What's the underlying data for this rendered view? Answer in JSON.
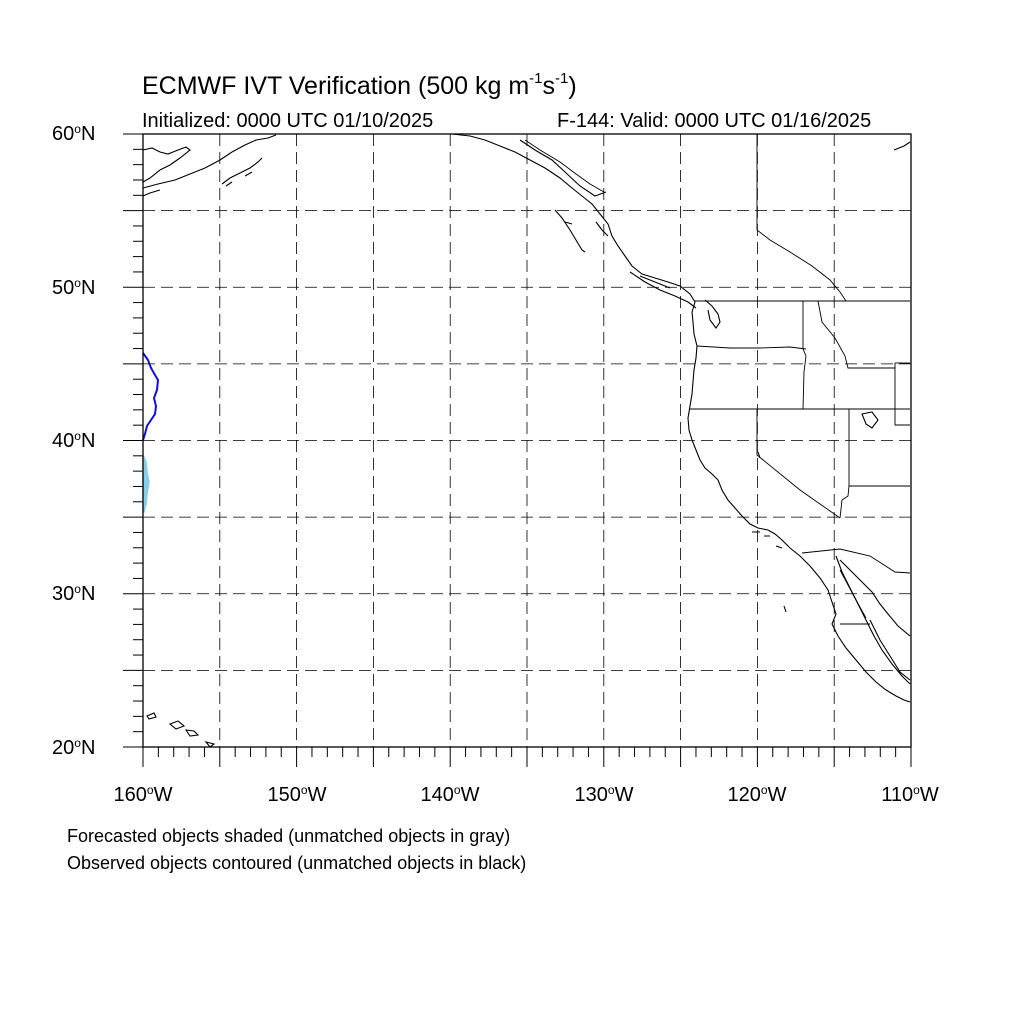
{
  "title": {
    "main": "ECMWF IVT Verification (500 kg m",
    "sup1": "-1",
    "mid": "s",
    "sup2": "-1",
    "end": ")"
  },
  "initialized": "Initialized: 0000 UTC 01/10/2025",
  "valid": "F-144: Valid: 0000 UTC 01/16/2025",
  "lat_labels": [
    {
      "num": "60",
      "hemi": "N"
    },
    {
      "num": "50",
      "hemi": "N"
    },
    {
      "num": "40",
      "hemi": "N"
    },
    {
      "num": "30",
      "hemi": "N"
    },
    {
      "num": "20",
      "hemi": "N"
    }
  ],
  "lon_labels": [
    {
      "num": "160",
      "hemi": "W"
    },
    {
      "num": "150",
      "hemi": "W"
    },
    {
      "num": "140",
      "hemi": "W"
    },
    {
      "num": "130",
      "hemi": "W"
    },
    {
      "num": "120",
      "hemi": "W"
    },
    {
      "num": "110",
      "hemi": "W"
    }
  ],
  "deg_symbol": "o",
  "footer": {
    "line1": "Forecasted objects shaded (unmatched objects in gray)",
    "line2": "Observed objects contoured (unmatched objects in black)"
  },
  "map": {
    "lon_range": [
      -160,
      -110
    ],
    "lat_range": [
      20,
      60
    ],
    "grid_spacing_deg": 5,
    "grid_style": "dashed"
  },
  "colors": {
    "observed_contour": "#1010d8",
    "forecast_shade": "#87cfe8",
    "coastline": "#000000",
    "grid": "#000000"
  }
}
